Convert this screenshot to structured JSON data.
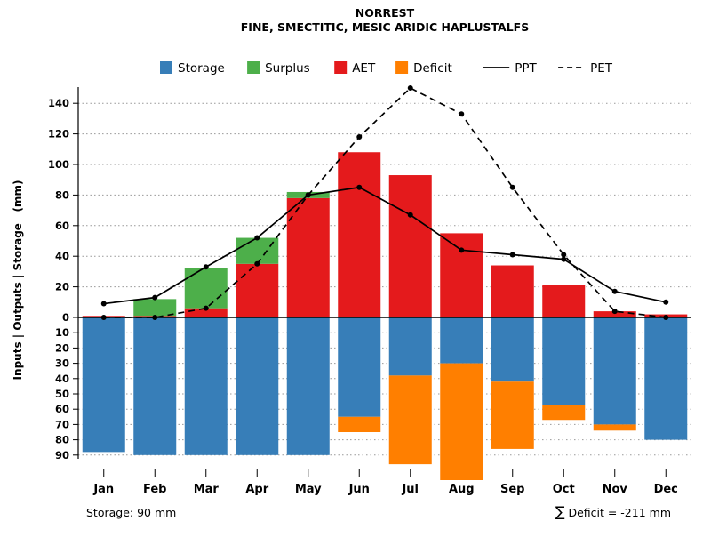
{
  "footer": {
    "storage_note": "Storage: 90 mm",
    "deficit_sigma": "∑",
    "deficit_note": " Deficit = -211 mm"
  },
  "legend": [
    {
      "label": "Storage",
      "type": "box",
      "color": "#377EB8"
    },
    {
      "label": "Surplus",
      "type": "box",
      "color": "#4DAF4A"
    },
    {
      "label": "AET",
      "type": "box",
      "color": "#E41A1C"
    },
    {
      "label": "Deficit",
      "type": "box",
      "color": "#FF7F00"
    },
    {
      "label": "PPT",
      "type": "line",
      "dash": "solid",
      "color": "#000000"
    },
    {
      "label": "PET",
      "type": "line",
      "dash": "dashed",
      "color": "#000000"
    }
  ],
  "chart_data": {
    "type": "bar+line water balance",
    "title": "NORREST",
    "subtitle": "FINE, SMECTITIC, MESIC ARIDIC HAPLUSTALFS",
    "ylabel": "Inputs | Outputs | Storage   (mm)",
    "categories": [
      "Jan",
      "Feb",
      "Mar",
      "Apr",
      "May",
      "Jun",
      "Jul",
      "Aug",
      "Sep",
      "Oct",
      "Nov",
      "Dec"
    ],
    "upper_axis_range": [
      0,
      155
    ],
    "lower_axis_range": [
      0,
      100
    ],
    "upper_ticks": [
      0,
      20,
      40,
      60,
      80,
      100,
      120,
      140
    ],
    "lower_ticks": [
      10,
      20,
      30,
      40,
      50,
      60,
      70,
      80,
      90
    ],
    "grid": "dotted-horizontal",
    "legend_position": "top",
    "series": [
      {
        "name": "AET",
        "role": "bar-above",
        "color": "#E41A1C",
        "values": [
          1,
          1,
          6,
          35,
          78,
          108,
          93,
          55,
          34,
          21,
          4,
          2
        ]
      },
      {
        "name": "Surplus",
        "role": "bar-above-stacked",
        "color": "#4DAF4A",
        "values": [
          0,
          11,
          26,
          17,
          4,
          0,
          0,
          0,
          0,
          0,
          0,
          0
        ]
      },
      {
        "name": "Storage",
        "role": "bar-below",
        "color": "#377EB8",
        "values": [
          88,
          90,
          90,
          90,
          90,
          65,
          38,
          30,
          42,
          57,
          70,
          80
        ]
      },
      {
        "name": "Deficit",
        "role": "bar-below-stacked",
        "color": "#FF7F00",
        "values": [
          0,
          0,
          0,
          0,
          0,
          10,
          58,
          85,
          44,
          10,
          4,
          0
        ]
      },
      {
        "name": "PPT",
        "role": "line-solid",
        "color": "#000000",
        "values": [
          9,
          13,
          33,
          52,
          80,
          85,
          67,
          44,
          41,
          38,
          17,
          10
        ]
      },
      {
        "name": "PET",
        "role": "line-dashed",
        "color": "#000000",
        "values": [
          0,
          0,
          6,
          35,
          80,
          118,
          150,
          133,
          85,
          41,
          4,
          0
        ]
      }
    ]
  }
}
